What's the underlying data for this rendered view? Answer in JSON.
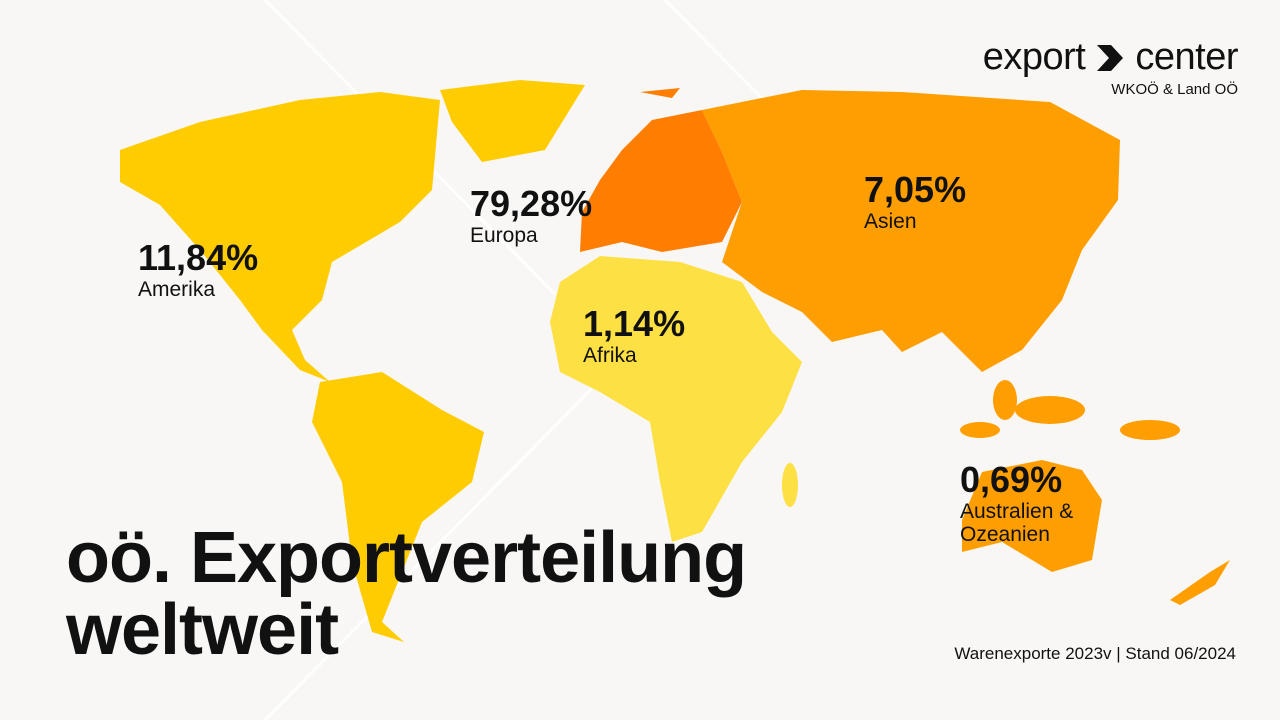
{
  "logo": {
    "text_left": "export",
    "text_right": "center",
    "subtitle": "WKOÖ & Land OÖ",
    "icon": "chevron-right-icon"
  },
  "title": {
    "line1": "oö. Exportverteilung",
    "line2": "weltweit"
  },
  "source": "Warenexporte 2023v | Stand 06/2024",
  "regions": [
    {
      "name": "Amerika",
      "share": "11,84%",
      "color": "#fecc00"
    },
    {
      "name": "Europa",
      "share": "79,28%",
      "color": "#ff7d00"
    },
    {
      "name": "Asien",
      "share": "7,05%",
      "color": "#ff9e00"
    },
    {
      "name": "Afrika",
      "share": "1,14%",
      "color": "#fde043"
    },
    {
      "name": "Australien & Ozeanien",
      "share": "0,69%",
      "color": "#ff9e00"
    }
  ]
}
